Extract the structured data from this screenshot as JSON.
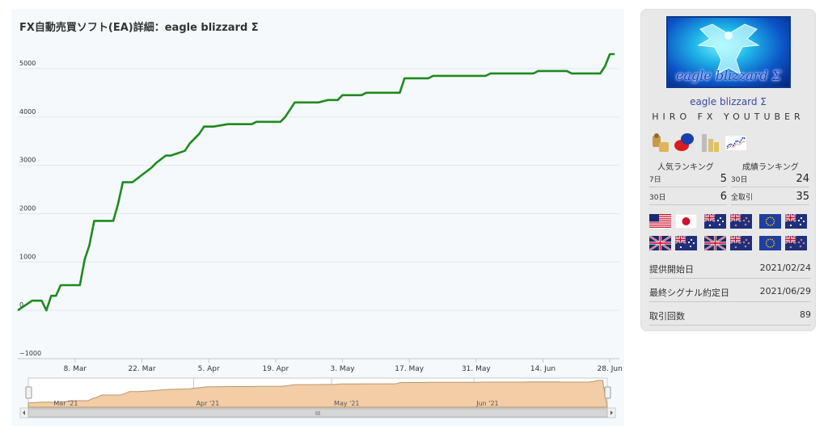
{
  "chart": {
    "title": "FX自動売買ソフト(EA)詳細：eagle blizzard Σ",
    "colors": {
      "line": "#1e8a1e",
      "navigator_fill": "#f3cda6",
      "navigator_line": "#b7966f",
      "grid": "#e2e8ee"
    },
    "y_ticks": [
      "5000",
      "4000",
      "3000",
      "2000",
      "1000",
      "0",
      "−1000"
    ],
    "x_ticks": [
      "8. Mar",
      "22. Mar",
      "5. Apr",
      "19. Apr",
      "3. May",
      "17. May",
      "31. May",
      "14. Jun",
      "28. Jun"
    ],
    "navigator_labels": [
      "Mar '21",
      "Apr '21",
      "May '21",
      "Jun '21"
    ],
    "scrollbar_grip": "III"
  },
  "chart_data": {
    "type": "line",
    "title": "FX自動売買ソフト(EA)詳細：eagle blizzard Σ",
    "xlabel": "",
    "ylabel": "",
    "ylim": [
      -1000,
      5500
    ],
    "xlim": [
      "2021-02-24",
      "2021-06-30"
    ],
    "grid": true,
    "x": [
      "2021-02-24",
      "2021-02-27",
      "2021-03-01",
      "2021-03-02",
      "2021-03-03",
      "2021-03-04",
      "2021-03-05",
      "2021-03-06",
      "2021-03-09",
      "2021-03-10",
      "2021-03-11",
      "2021-03-12",
      "2021-03-16",
      "2021-03-17",
      "2021-03-18",
      "2021-03-19",
      "2021-03-20",
      "2021-03-22",
      "2021-03-24",
      "2021-03-25",
      "2021-03-27",
      "2021-03-28",
      "2021-03-31",
      "2021-04-01",
      "2021-04-03",
      "2021-04-04",
      "2021-04-05",
      "2021-04-06",
      "2021-04-09",
      "2021-04-10",
      "2021-04-14",
      "2021-04-15",
      "2021-04-20",
      "2021-04-21",
      "2021-04-23",
      "2021-04-28",
      "2021-04-30",
      "2021-05-02",
      "2021-05-03",
      "2021-05-07",
      "2021-05-08",
      "2021-05-15",
      "2021-05-16",
      "2021-05-21",
      "2021-05-22",
      "2021-06-02",
      "2021-06-03",
      "2021-06-12",
      "2021-06-13",
      "2021-06-19",
      "2021-06-20",
      "2021-06-26",
      "2021-06-27",
      "2021-06-28",
      "2021-06-29"
    ],
    "series": [
      {
        "values": [
          0,
          200,
          200,
          0,
          300,
          300,
          520,
          520,
          520,
          1050,
          1350,
          1850,
          1850,
          2200,
          2650,
          2650,
          2650,
          2800,
          2950,
          3050,
          3200,
          3200,
          3300,
          3450,
          3650,
          3800,
          3800,
          3800,
          3850,
          3850,
          3850,
          3900,
          3900,
          4000,
          4300,
          4300,
          4350,
          4350,
          4450,
          4450,
          4500,
          4500,
          4800,
          4800,
          4850,
          4850,
          4900,
          4900,
          4950,
          4950,
          4900,
          4900,
          5050,
          5300,
          5300
        ]
      }
    ]
  },
  "profile": {
    "banner_text": "eagle blizzard Σ",
    "name": "eagle blizzard Σ",
    "author": "HIRO FX YOUTUBER",
    "category_icons": [
      "money-bag-icon",
      "chat-bubbles-icon",
      "coin-stack-icon",
      "tick-chart-icon"
    ],
    "popularity_ranking": {
      "label": "人気ランキング",
      "rows": [
        {
          "label": "7日",
          "value": "5"
        },
        {
          "label": "30日",
          "value": "6"
        }
      ]
    },
    "performance_ranking": {
      "label": "成績ランキング",
      "rows": [
        {
          "label": "30日",
          "value": "24"
        },
        {
          "label": "全取引",
          "value": "35"
        }
      ]
    },
    "currency_pairs": [
      {
        "base": "usa",
        "quote": "japan"
      },
      {
        "base": "australia",
        "quote": "new-zealand"
      },
      {
        "base": "eu",
        "quote": "australia"
      },
      {
        "base": "uk",
        "quote": "australia"
      },
      {
        "base": "uk",
        "quote": "new-zealand"
      },
      {
        "base": "eu",
        "quote": "new-zealand"
      }
    ],
    "info": [
      {
        "label": "提供開始日",
        "value": "2021/02/24"
      },
      {
        "label": "最終シグナル約定日",
        "value": "2021/06/29"
      },
      {
        "label": "取引回数",
        "value": "89"
      }
    ]
  }
}
